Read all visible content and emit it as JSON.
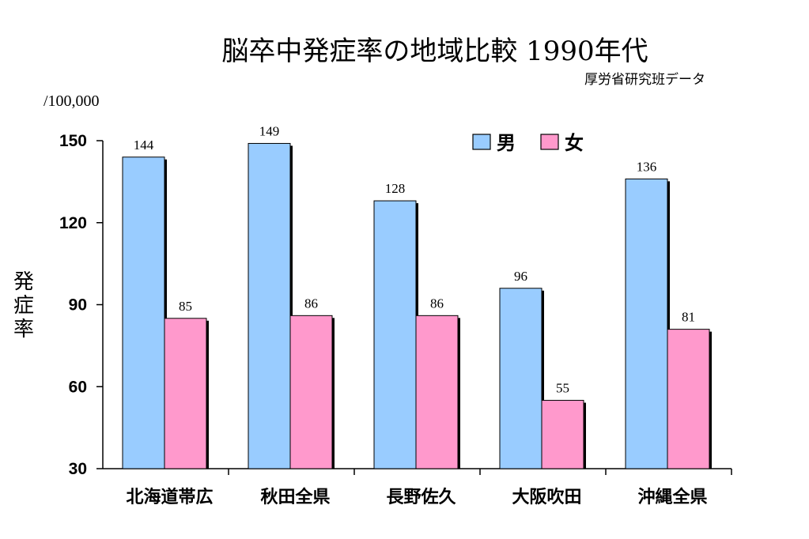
{
  "chart_data": {
    "type": "bar",
    "title": "脳卒中発症率の地域比較 1990年代",
    "subtitle": "厚労省研究班データ",
    "unit": "/100,000",
    "ylabel": "発症率",
    "categories": [
      "北海道帯広",
      "秋田全県",
      "長野佐久",
      "大阪吹田",
      "沖縄全県"
    ],
    "series": [
      {
        "name": "男",
        "color": "#99ccff",
        "values": [
          144,
          149,
          128,
          96,
          136
        ]
      },
      {
        "name": "女",
        "color": "#ff99cc",
        "values": [
          85,
          86,
          86,
          55,
          81
        ]
      }
    ],
    "ylim": [
      30,
      150
    ],
    "yticks": [
      "150",
      "120",
      "90",
      "60",
      "30"
    ],
    "grid": false,
    "legend_position": "top-right"
  }
}
